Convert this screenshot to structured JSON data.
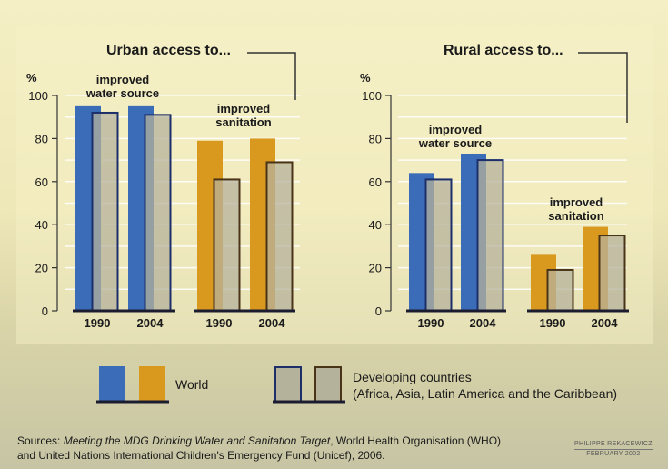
{
  "colors": {
    "world_water": "#3a6cb8",
    "world_sanitation": "#d9981e",
    "dev_water_outline": "#1c2f6a",
    "dev_sanitation_outline": "#4a3418",
    "dev_fill": "#b5b29c"
  },
  "chart_data": [
    {
      "type": "bar",
      "title": "Urban access to...",
      "ylabel": "%",
      "ylim": [
        0,
        100
      ],
      "yticks": [
        0,
        20,
        40,
        60,
        80,
        100
      ],
      "grid": true,
      "groups": [
        {
          "label": "improved water source",
          "categories": [
            "1990",
            "2004"
          ],
          "series": [
            {
              "name": "World",
              "values": [
                95,
                95
              ]
            },
            {
              "name": "Developing countries",
              "values": [
                92,
                91
              ]
            }
          ]
        },
        {
          "label": "improved sanitation",
          "categories": [
            "1990",
            "2004"
          ],
          "series": [
            {
              "name": "World",
              "values": [
                79,
                80
              ]
            },
            {
              "name": "Developing countries",
              "values": [
                61,
                69
              ]
            }
          ]
        }
      ]
    },
    {
      "type": "bar",
      "title": "Rural access to...",
      "ylabel": "%",
      "ylim": [
        0,
        100
      ],
      "yticks": [
        0,
        20,
        40,
        60,
        80,
        100
      ],
      "grid": true,
      "groups": [
        {
          "label": "improved water source",
          "categories": [
            "1990",
            "2004"
          ],
          "series": [
            {
              "name": "World",
              "values": [
                64,
                73
              ]
            },
            {
              "name": "Developing countries",
              "values": [
                61,
                70
              ]
            }
          ]
        },
        {
          "label": "improved sanitation",
          "categories": [
            "1990",
            "2004"
          ],
          "series": [
            {
              "name": "World",
              "values": [
                26,
                39
              ]
            },
            {
              "name": "Developing countries",
              "values": [
                19,
                35
              ]
            }
          ]
        }
      ]
    }
  ],
  "legend": {
    "world": "World",
    "developing_line1": "Developing countries",
    "developing_line2": "(Africa, Asia, Latin America and the Caribbean)"
  },
  "sources": {
    "prefix": "Sources: ",
    "title": "Meeting the MDG Drinking Water and Sanitation Target",
    "rest1": ", World Health Organisation (WHO)",
    "line2": "and United Nations International Children's Emergency Fund (Unicef), 2006."
  },
  "credit": {
    "author": "PHILIPPE REKACEWICZ",
    "date": "FEBRUARY 2002"
  }
}
